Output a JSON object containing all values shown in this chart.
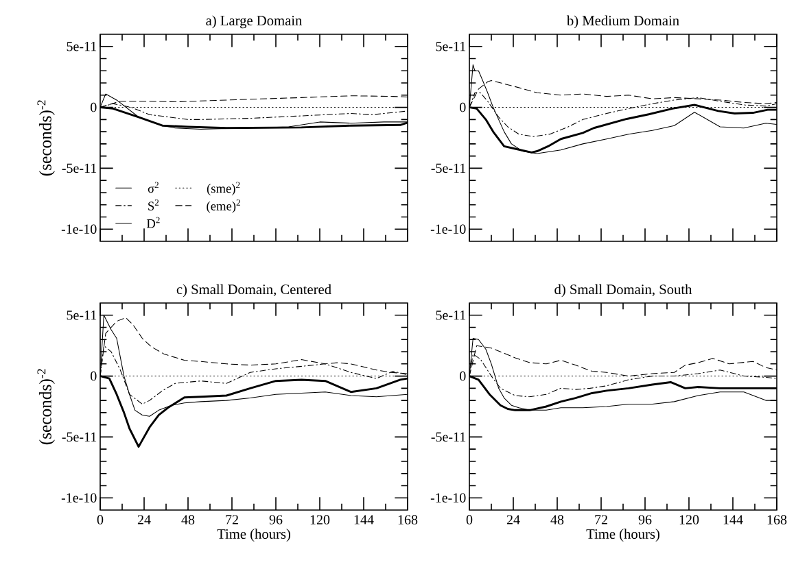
{
  "chart_data": [
    {
      "type": "line",
      "title": "a) Large Domain",
      "ylabel": "(seconds)$^{-2}$",
      "xlim": [
        0,
        168
      ],
      "ylim": [
        -1.1e-10,
        6e-11
      ],
      "xticks": [
        0,
        24,
        48,
        72,
        96,
        120,
        144,
        168
      ],
      "yticks": [
        {
          "value": 5e-11,
          "label": "5e-11"
        },
        0,
        {
          "value": -5e-11,
          "label": "-5e-11"
        },
        {
          "value": -1e-10,
          "label": "-1e-10"
        }
      ],
      "tick_labels": "y",
      "legend": "bottom left",
      "series": [
        {
          "name": "σ$^{2}$",
          "color": "#000000",
          "line_style": "solid",
          "x": [
            0,
            3,
            9,
            21,
            34,
            41,
            55,
            80,
            103,
            120,
            137,
            155,
            168
          ],
          "values": [
            0,
            1.1e-11,
            6e-12,
            -8e-12,
            -1.5e-11,
            -1.7e-11,
            -1.8e-11,
            -1.7e-11,
            -1.6e-11,
            -1.2e-11,
            -1.3e-11,
            -1.2e-11,
            -1.2e-11
          ]
        },
        {
          "name": "S$^{2}$",
          "color": "#000000",
          "line_style": "dashdot",
          "x": [
            0,
            7,
            17,
            27,
            48,
            55,
            82,
            110,
            137,
            149,
            168
          ],
          "values": [
            0,
            3e-12,
            0,
            -6e-12,
            -1e-11,
            -1e-11,
            -9e-12,
            -7e-12,
            -5e-12,
            -6e-12,
            -3e-12
          ]
        },
        {
          "name": "D$^{2}$",
          "color": "#000000",
          "line_style": "solid",
          "x": [
            0,
            7,
            21,
            34,
            48,
            69,
            110,
            137,
            164,
            168
          ],
          "values": [
            0,
            -1e-12,
            -8e-12,
            -1.5e-11,
            -1.6e-11,
            -1.7e-11,
            -1.65e-11,
            -1.5e-11,
            -1.45e-11,
            -1.25e-11
          ]
        },
        {
          "name": "(sme)$^{2}$",
          "color": "#000000",
          "line_style": "dotted",
          "x": [
            0,
            168
          ],
          "values": [
            0,
            0
          ]
        },
        {
          "name": "(eme)$^{2}$",
          "color": "#000000",
          "line_style": "dashed",
          "x": [
            0,
            11,
            27,
            41,
            69,
            110,
            137,
            160,
            168
          ],
          "values": [
            0,
            5e-12,
            5e-12,
            4.5e-12,
            6e-12,
            8e-12,
            9.5e-12,
            9e-12,
            8.5e-12
          ]
        }
      ]
    },
    {
      "type": "line",
      "title": "b) Medium Domain",
      "xlim": [
        0,
        168
      ],
      "ylim": [
        -1.1e-10,
        6e-11
      ],
      "xticks": [
        0,
        24,
        48,
        72,
        96,
        120,
        144,
        168
      ],
      "yticks": [
        {
          "value": 5e-11,
          "label": "5e-11"
        },
        0,
        {
          "value": -5e-11,
          "label": "-5e-11"
        },
        {
          "value": -1e-10,
          "label": "-1e-10"
        }
      ],
      "tick_labels": "y",
      "series": [
        {
          "color": "#000000",
          "line_style": "solid",
          "x": [
            0,
            2,
            3,
            5,
            7,
            10,
            13,
            16,
            19,
            23,
            29,
            37,
            50,
            62,
            75,
            87,
            100,
            112,
            123,
            137,
            150,
            162,
            168
          ],
          "values": [
            0,
            3.5e-11,
            3e-11,
            3e-11,
            2.3e-11,
            1.2e-11,
            0,
            -1e-11,
            -2e-11,
            -3e-11,
            -3.6e-11,
            -3.8e-11,
            -3.5e-11,
            -3e-11,
            -2.6e-11,
            -2.2e-11,
            -1.9e-11,
            -1.5e-11,
            -4e-12,
            -1.6e-11,
            -1.7e-11,
            -1.3e-11,
            -1.4e-11
          ]
        },
        {
          "color": "#000000",
          "line_style": "dashdot",
          "x": [
            0,
            3,
            6,
            10,
            16,
            21,
            27,
            35,
            44,
            54,
            62,
            75,
            87,
            100,
            112,
            125,
            137,
            150,
            162,
            168
          ],
          "values": [
            0,
            1.2e-11,
            1.2e-11,
            5e-12,
            -8e-12,
            -1.6e-11,
            -2.2e-11,
            -2.4e-11,
            -2.2e-11,
            -1.6e-11,
            -1e-11,
            -5e-12,
            -1e-12,
            3e-12,
            6e-12,
            8e-12,
            5e-12,
            2e-12,
            1e-12,
            3e-12
          ]
        },
        {
          "color": "#000000",
          "line_style": "solid",
          "x": [
            0,
            4,
            9,
            13,
            19,
            25,
            34,
            37,
            43,
            50,
            62,
            68,
            86,
            98,
            111,
            123,
            136,
            145,
            155,
            163,
            168
          ],
          "values": [
            0,
            -1e-12,
            -1e-11,
            -2e-11,
            -3.2e-11,
            -3.4e-11,
            -3.7e-11,
            -3.6e-11,
            -3.2e-11,
            -2.6e-11,
            -2.1e-11,
            -1.7e-11,
            -9.5e-12,
            -5.7e-12,
            -1e-12,
            2e-12,
            -3e-12,
            -5e-12,
            -4.5e-12,
            -2e-12,
            -2e-12
          ]
        },
        {
          "color": "#000000",
          "line_style": "dotted",
          "x": [
            0,
            168
          ],
          "values": [
            0,
            0
          ]
        },
        {
          "color": "#000000",
          "line_style": "dashed",
          "x": [
            0,
            5,
            10,
            12,
            25,
            37,
            50,
            62,
            75,
            87,
            100,
            112,
            125,
            137,
            150,
            162,
            168
          ],
          "values": [
            0,
            1.5e-11,
            2.1e-11,
            2.2e-11,
            1.7e-11,
            1.2e-11,
            1e-11,
            1.1e-11,
            9e-12,
            1e-11,
            7e-12,
            8e-12,
            7e-12,
            6e-12,
            4e-12,
            3e-12,
            4e-12
          ]
        }
      ]
    },
    {
      "type": "line",
      "title": "c) Small Domain, Centered",
      "xlabel": "Time (hours)",
      "ylabel": "(seconds)$^{-2}$",
      "xlim": [
        0,
        168
      ],
      "ylim": [
        -1.1e-10,
        6e-11
      ],
      "xticks": [
        0,
        24,
        48,
        72,
        96,
        120,
        144,
        168
      ],
      "yticks": [
        {
          "value": 5e-11,
          "label": "5e-11"
        },
        0,
        {
          "value": -5e-11,
          "label": "-5e-11"
        },
        {
          "value": -1e-10,
          "label": "-1e-10"
        }
      ],
      "series": [
        {
          "color": "#000000",
          "line_style": "solid",
          "x": [
            0,
            2,
            6,
            9,
            13,
            16,
            19,
            23,
            27,
            32,
            39,
            46,
            55,
            69,
            82,
            96,
            110,
            123,
            137,
            151,
            168
          ],
          "values": [
            0,
            5e-11,
            3.8e-11,
            3.1e-11,
            0,
            -1.5e-11,
            -2.8e-11,
            -3.2e-11,
            -3.3e-11,
            -2.8e-11,
            -2.4e-11,
            -2.2e-11,
            -2.1e-11,
            -2e-11,
            -1.8e-11,
            -1.5e-11,
            -1.4e-11,
            -1.3e-11,
            -1.6e-11,
            -1.7e-11,
            -1.5e-11
          ]
        },
        {
          "color": "#000000",
          "line_style": "dashdot",
          "x": [
            0,
            2,
            6,
            11,
            16,
            23,
            27,
            34,
            41,
            55,
            69,
            82,
            96,
            110,
            123,
            137,
            151,
            160,
            168
          ],
          "values": [
            0,
            2.5e-11,
            2e-11,
            5e-12,
            -1.5e-11,
            -2.3e-11,
            -2e-11,
            -1.2e-11,
            -6e-12,
            -4e-12,
            -6e-12,
            3e-12,
            6e-12,
            8e-12,
            1e-11,
            3e-12,
            -2e-12,
            4e-12,
            1e-12
          ]
        },
        {
          "color": "#000000",
          "line_style": "solid",
          "x": [
            0,
            5,
            9,
            13,
            16,
            21,
            24,
            27,
            32,
            37,
            46,
            55,
            69,
            82,
            96,
            110,
            123,
            137,
            151,
            164,
            168
          ],
          "values": [
            0,
            -2e-12,
            -1.5e-11,
            -3e-11,
            -4.3e-11,
            -5.8e-11,
            -5e-11,
            -4.2e-11,
            -3.2e-11,
            -2.6e-11,
            -1.75e-11,
            -1.7e-11,
            -1.6e-11,
            -1e-11,
            -4e-12,
            -3e-12,
            -4e-12,
            -1.3e-11,
            -1e-11,
            -3e-12,
            -2e-12
          ]
        },
        {
          "color": "#000000",
          "line_style": "dotted",
          "x": [
            0,
            168
          ],
          "values": [
            0,
            0
          ]
        },
        {
          "color": "#000000",
          "line_style": "dashed",
          "x": [
            0,
            3,
            9,
            14,
            18,
            23,
            28,
            35,
            46,
            55,
            69,
            82,
            96,
            110,
            123,
            130,
            137,
            151,
            159,
            168
          ],
          "values": [
            0,
            3.5e-11,
            4.5e-11,
            4.8e-11,
            4.2e-11,
            3.1e-11,
            2.4e-11,
            1.8e-11,
            1.3e-11,
            1.2e-11,
            1e-11,
            9e-12,
            1e-11,
            1.35e-11,
            1e-11,
            1.1e-11,
            1e-11,
            5e-12,
            3e-12,
            2e-12
          ]
        }
      ]
    },
    {
      "type": "line",
      "title": "d) Small Domain, South",
      "xlabel": "Time (hours)",
      "xlim": [
        0,
        168
      ],
      "ylim": [
        -1.1e-10,
        6e-11
      ],
      "xticks": [
        0,
        24,
        48,
        72,
        96,
        120,
        144,
        168
      ],
      "yticks": [
        {
          "value": 5e-11,
          "label": "5e-11"
        },
        0,
        {
          "value": -5e-11,
          "label": "-5e-11"
        },
        {
          "value": -1e-10,
          "label": "-1e-10"
        }
      ],
      "series": [
        {
          "color": "#000000",
          "line_style": "solid",
          "x": [
            0,
            2,
            5,
            9,
            12,
            14,
            16,
            19,
            23,
            27,
            33,
            42,
            50,
            62,
            75,
            87,
            100,
            112,
            125,
            137,
            150,
            162,
            168
          ],
          "values": [
            0,
            3.1e-11,
            3e-11,
            2.2e-11,
            1e-11,
            0,
            -1e-11,
            -1.8e-11,
            -2.4e-11,
            -2.6e-11,
            -2.8e-11,
            -2.8e-11,
            -2.6e-11,
            -2.6e-11,
            -2.5e-11,
            -2.3e-11,
            -2.3e-11,
            -2.1e-11,
            -1.6e-11,
            -1.3e-11,
            -1.3e-11,
            -2e-11,
            -2e-11
          ]
        },
        {
          "color": "#000000",
          "line_style": "dashdot",
          "x": [
            0,
            2,
            6,
            12,
            17,
            25,
            33,
            42,
            50,
            58,
            66,
            75,
            87,
            100,
            112,
            125,
            137,
            150,
            162,
            168
          ],
          "values": [
            0,
            1.8e-11,
            1.4e-11,
            0,
            -1e-11,
            -1.6e-11,
            -1.7e-11,
            -1.5e-11,
            -1e-11,
            -1.1e-11,
            -1e-11,
            -8e-12,
            -3e-12,
            0,
            0,
            2e-12,
            5e-12,
            0,
            -1e-12,
            -2e-12
          ]
        },
        {
          "color": "#000000",
          "line_style": "solid",
          "x": [
            0,
            5,
            11,
            17,
            21,
            25,
            33,
            42,
            50,
            58,
            67,
            75,
            87,
            100,
            110,
            118,
            125,
            137,
            150,
            162,
            168
          ],
          "values": [
            0,
            -3e-12,
            -1.5e-11,
            -2.4e-11,
            -2.7e-11,
            -2.8e-11,
            -2.8e-11,
            -2.5e-11,
            -2.1e-11,
            -1.8e-11,
            -1.4e-11,
            -1.2e-11,
            -1e-11,
            -7e-12,
            -5e-12,
            -1e-11,
            -9e-12,
            -1e-11,
            -1e-11,
            -1e-11,
            -1e-11
          ]
        },
        {
          "color": "#000000",
          "line_style": "dotted",
          "x": [
            0,
            168
          ],
          "values": [
            0,
            0
          ]
        },
        {
          "color": "#000000",
          "line_style": "dashed",
          "x": [
            0,
            4,
            12,
            25,
            33,
            42,
            50,
            58,
            67,
            75,
            87,
            100,
            112,
            118,
            125,
            133,
            142,
            155,
            162,
            168
          ],
          "values": [
            0,
            2.5e-11,
            2.3e-11,
            1.5e-11,
            1.1e-11,
            1e-11,
            1.3e-11,
            9e-12,
            4e-12,
            3e-12,
            0,
            2e-12,
            3e-12,
            9e-12,
            1.1e-11,
            1.45e-11,
            1e-11,
            1.2e-11,
            7e-12,
            5e-12
          ]
        }
      ]
    }
  ]
}
